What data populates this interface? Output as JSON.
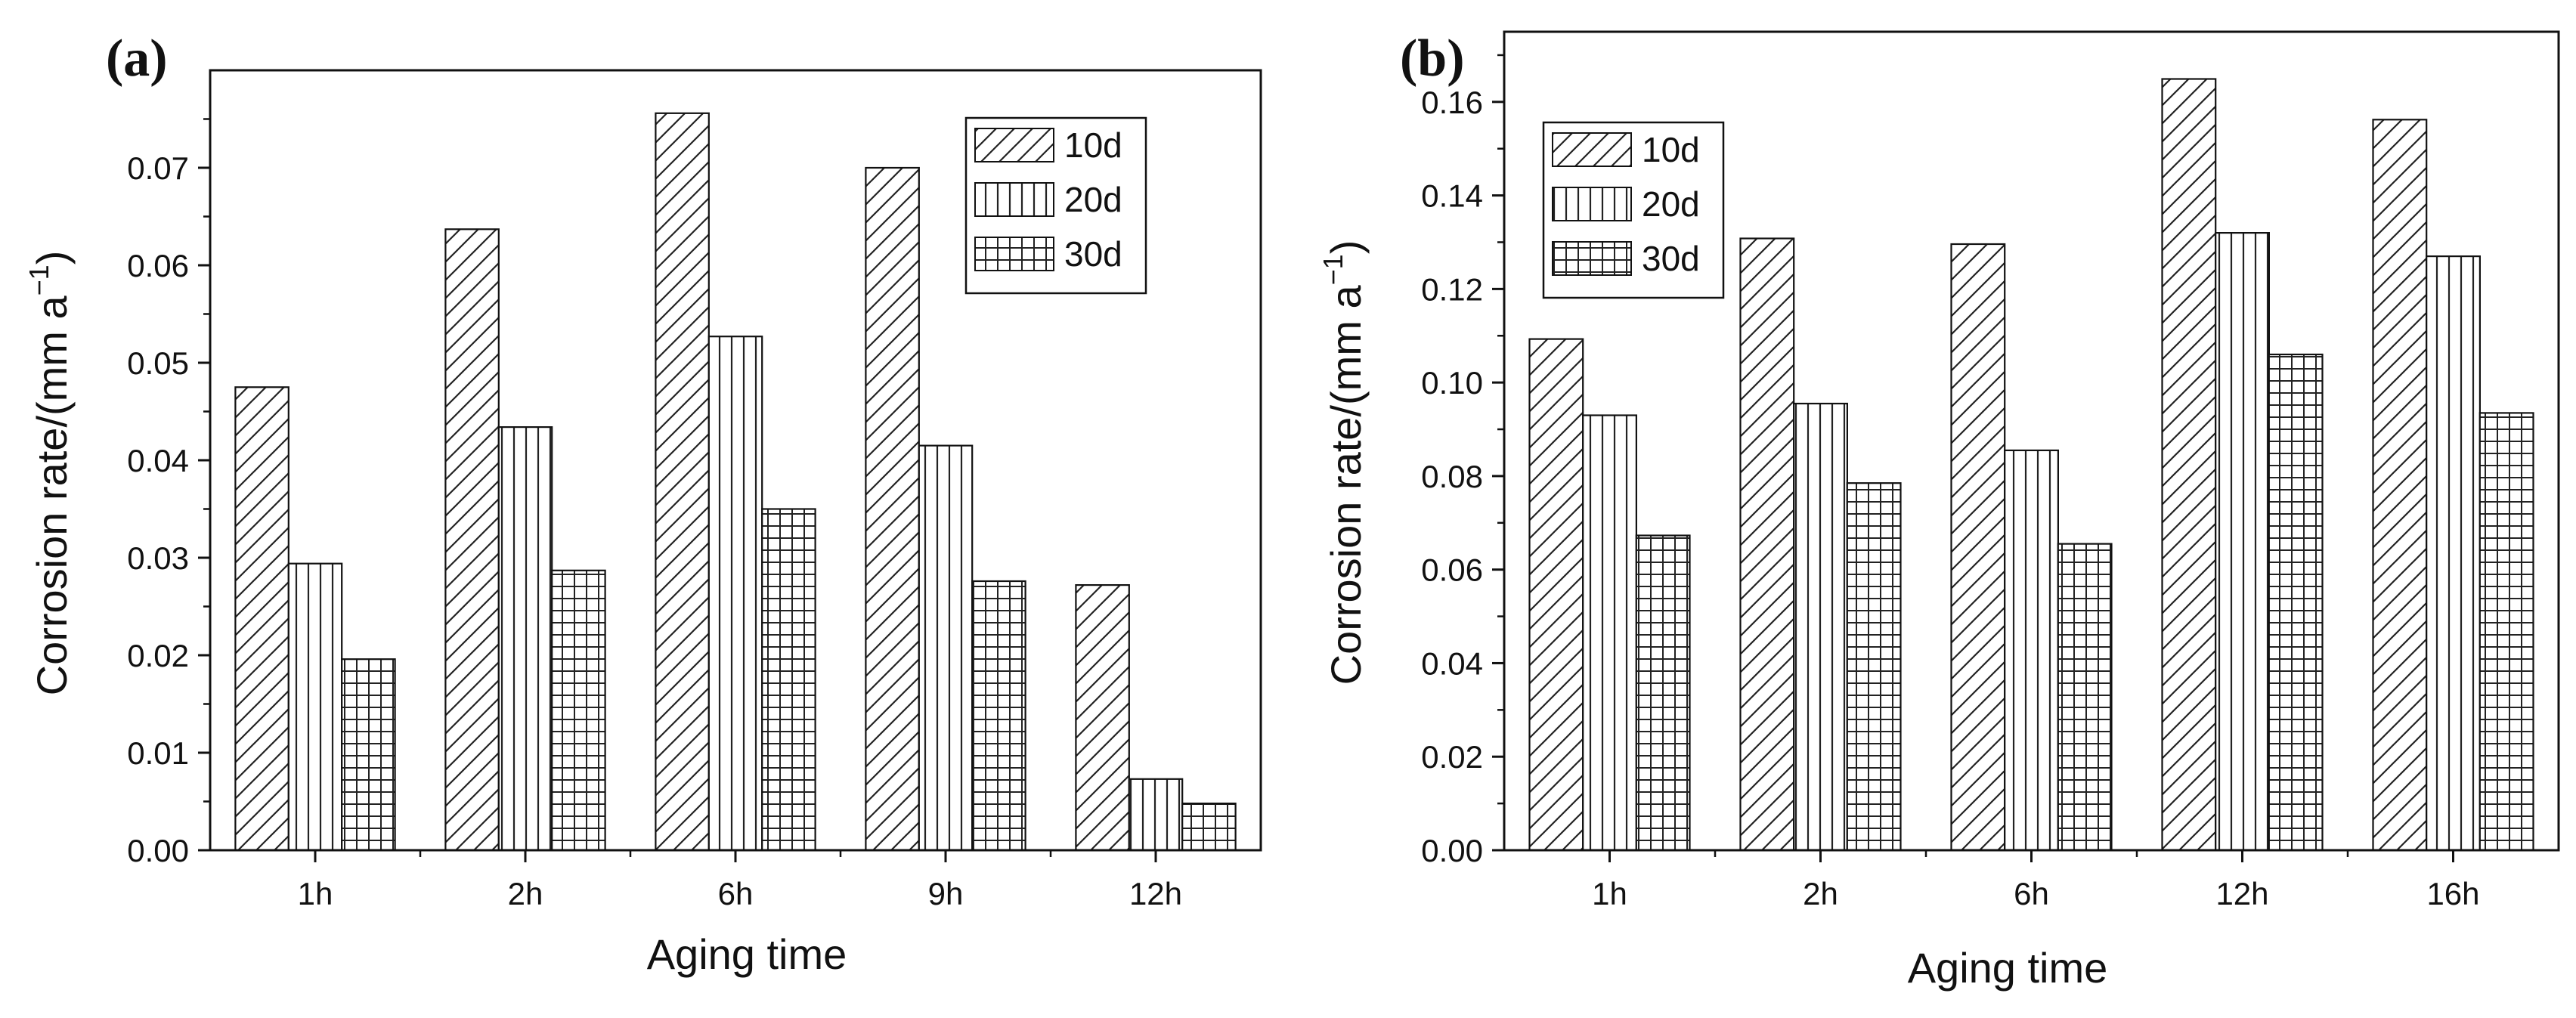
{
  "chart_data": [
    {
      "type": "bar",
      "panel_label": "(a)",
      "xlabel": "Aging time",
      "ylabel": "Corrosion rate/(mm a",
      "ylabel_superscript": "−1",
      "ylabel_close": ")",
      "categories": [
        "1h",
        "2h",
        "6h",
        "9h",
        "12h"
      ],
      "ylim": [
        0,
        0.08
      ],
      "yticks": [
        "0.00",
        "0.01",
        "0.02",
        "0.03",
        "0.04",
        "0.05",
        "0.06",
        "0.07"
      ],
      "legend_position": "top-right",
      "series": [
        {
          "name": "10d",
          "pattern": "diagonal",
          "values": [
            0.0475,
            0.0637,
            0.0756,
            0.07,
            0.0272
          ]
        },
        {
          "name": "20d",
          "pattern": "vertical",
          "values": [
            0.0294,
            0.0434,
            0.0527,
            0.0415,
            0.0073
          ]
        },
        {
          "name": "30d",
          "pattern": "grid",
          "values": [
            0.0196,
            0.0287,
            0.035,
            0.0276,
            0.0048
          ]
        }
      ]
    },
    {
      "type": "bar",
      "panel_label": "(b)",
      "xlabel": "Aging time",
      "ylabel": "Corrosion rate/(mm a",
      "ylabel_superscript": "−1",
      "ylabel_close": ")",
      "categories": [
        "1h",
        "2h",
        "6h",
        "12h",
        "16h"
      ],
      "ylim": [
        0,
        0.175
      ],
      "yticks": [
        "0.00",
        "0.02",
        "0.04",
        "0.06",
        "0.08",
        "0.10",
        "0.12",
        "0.14",
        "0.16"
      ],
      "legend_position": "top-left",
      "series": [
        {
          "name": "10d",
          "pattern": "diagonal",
          "values": [
            0.1093,
            0.1308,
            0.1296,
            0.1649,
            0.1562
          ]
        },
        {
          "name": "20d",
          "pattern": "vertical",
          "values": [
            0.093,
            0.0955,
            0.0855,
            0.132,
            0.127
          ]
        },
        {
          "name": "30d",
          "pattern": "grid",
          "values": [
            0.0673,
            0.0785,
            0.0655,
            0.106,
            0.0935
          ]
        }
      ]
    }
  ]
}
